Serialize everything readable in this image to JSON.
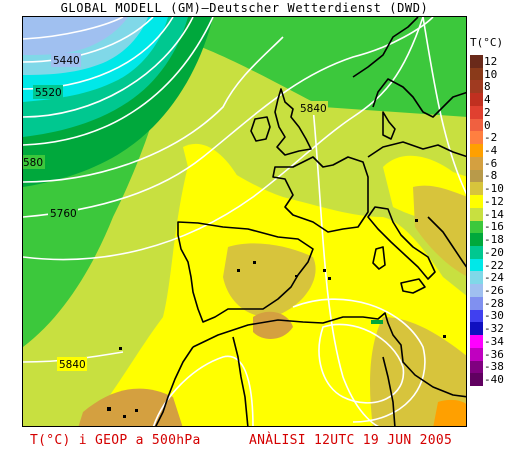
{
  "header": {
    "title": "GLOBAL MODELL (GM)—Deutscher Wetterdienst (DWD)"
  },
  "legend": {
    "title": "T(°C)",
    "steps": [
      {
        "label": "12",
        "color": "#6a2a1a"
      },
      {
        "label": "10",
        "color": "#8a3a1a"
      },
      {
        "label": "8",
        "color": "#a03a20"
      },
      {
        "label": "4",
        "color": "#c03020"
      },
      {
        "label": "2",
        "color": "#e04030"
      },
      {
        "label": "0",
        "color": "#f06040"
      },
      {
        "label": "-2",
        "color": "#ff7f40"
      },
      {
        "label": "-4",
        "color": "#ffa000"
      },
      {
        "label": "-6",
        "color": "#d4a040"
      },
      {
        "label": "-8",
        "color": "#b89a4a"
      },
      {
        "label": "-10",
        "color": "#d7c43c"
      },
      {
        "label": "-12",
        "color": "#ffff00"
      },
      {
        "label": "-14",
        "color": "#c8e040"
      },
      {
        "label": "-16",
        "color": "#3cc83c"
      },
      {
        "label": "-18",
        "color": "#00a83c"
      },
      {
        "label": "-20",
        "color": "#00c890"
      },
      {
        "label": "-22",
        "color": "#00e8e8"
      },
      {
        "label": "-24",
        "color": "#80d8e8"
      },
      {
        "label": "-26",
        "color": "#a0c0f0"
      },
      {
        "label": "-28",
        "color": "#8090f0"
      },
      {
        "label": "-30",
        "color": "#4040f0"
      },
      {
        "label": "-32",
        "color": "#1010c0"
      },
      {
        "label": "-34",
        "color": "#ff00ff"
      },
      {
        "label": "-36",
        "color": "#c000c0"
      },
      {
        "label": "-38",
        "color": "#800080"
      },
      {
        "label": "-40",
        "color": "#600060"
      }
    ]
  },
  "map": {
    "contour_labels": [
      {
        "text": "5440"
      },
      {
        "text": "5520"
      },
      {
        "text": "5840"
      },
      {
        "text": "580"
      },
      {
        "text": "5760"
      },
      {
        "text": "5840"
      }
    ]
  },
  "footer": {
    "left": "T(°C) i GEOP a 500hPa",
    "right": "ANÀLISI 12UTC 19 JUN 2005"
  }
}
